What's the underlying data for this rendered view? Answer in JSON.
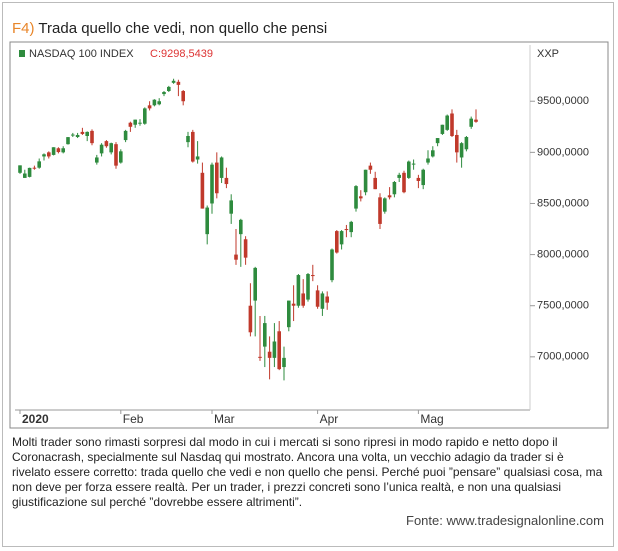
{
  "header": {
    "label": "F4)",
    "title": "Trada quello che vedi, non quello che pensi"
  },
  "chart_data": {
    "type": "candlestick",
    "series_name": "NASDAQ 100 INDEX",
    "last_label": "C:9298,5439",
    "axis_label": "XXP",
    "up_color": "#2e8b3e",
    "down_color": "#c0392b",
    "categories": [
      "2020",
      null,
      null,
      null,
      null,
      null,
      null,
      null,
      null,
      null,
      null,
      null,
      null,
      null,
      null,
      null,
      null,
      null,
      null,
      null,
      null,
      "Feb",
      null,
      null,
      null,
      null,
      null,
      null,
      null,
      null,
      null,
      null,
      null,
      null,
      null,
      null,
      null,
      null,
      null,
      null,
      "Mar",
      null,
      null,
      null,
      null,
      null,
      null,
      null,
      null,
      null,
      null,
      null,
      null,
      null,
      null,
      null,
      null,
      null,
      null,
      null,
      null,
      null,
      "Apr",
      null,
      null,
      null,
      null,
      null,
      null,
      null,
      null,
      null,
      null,
      null,
      null,
      null,
      null,
      null,
      null,
      null,
      null,
      null,
      null,
      "Mag",
      null,
      null,
      null,
      null,
      null,
      null,
      null,
      null,
      null,
      null,
      null,
      null
    ],
    "ohlc": [
      [
        8800,
        8873,
        8790,
        8873
      ],
      [
        8750,
        8830,
        8750,
        8793
      ],
      [
        8760,
        8850,
        8755,
        8848
      ],
      [
        8850,
        8870,
        8830,
        8846
      ],
      [
        8850,
        8940,
        8840,
        8912
      ],
      [
        8960,
        8990,
        8920,
        8981
      ],
      [
        9000,
        9010,
        8940,
        8960
      ],
      [
        8975,
        9050,
        8970,
        9050
      ],
      [
        9040,
        9050,
        8990,
        9003
      ],
      [
        9000,
        9060,
        8990,
        9040
      ],
      [
        9080,
        9150,
        9075,
        9149
      ],
      [
        9170,
        9190,
        9150,
        9174
      ],
      [
        9150,
        9190,
        9140,
        9170
      ],
      [
        9200,
        9240,
        9170,
        9180
      ],
      [
        9160,
        9205,
        9110,
        9200
      ],
      [
        9210,
        9225,
        9070,
        9090
      ],
      [
        8900,
        8975,
        8880,
        8950
      ],
      [
        8990,
        9090,
        8960,
        9075
      ],
      [
        9110,
        9120,
        9045,
        9060
      ],
      [
        9000,
        9095,
        8980,
        9090
      ],
      [
        9080,
        9100,
        8840,
        8870
      ],
      [
        8900,
        9030,
        8890,
        9010
      ],
      [
        9120,
        9220,
        9100,
        9210
      ],
      [
        9290,
        9300,
        9200,
        9250
      ],
      [
        9270,
        9320,
        9240,
        9320
      ],
      [
        9290,
        9325,
        9260,
        9290
      ],
      [
        9280,
        9440,
        9270,
        9430
      ],
      [
        9460,
        9500,
        9410,
        9430
      ],
      [
        9460,
        9520,
        9450,
        9515
      ],
      [
        9470,
        9530,
        9460,
        9500
      ],
      [
        9570,
        9600,
        9550,
        9590
      ],
      [
        9600,
        9650,
        9590,
        9640
      ],
      [
        9680,
        9720,
        9670,
        9700
      ],
      [
        9690,
        9710,
        9550,
        9660
      ],
      [
        9600,
        9610,
        9460,
        9500
      ],
      [
        9100,
        9200,
        9050,
        9160
      ],
      [
        9200,
        9220,
        8900,
        8910
      ],
      [
        8930,
        9110,
        8890,
        8960
      ],
      [
        8800,
        8900,
        8450,
        8450
      ],
      [
        8200,
        8480,
        8100,
        8460
      ],
      [
        8500,
        8900,
        8400,
        8880
      ],
      [
        8900,
        9000,
        8550,
        8600
      ],
      [
        8750,
        8960,
        8700,
        8950
      ],
      [
        8750,
        8850,
        8650,
        8690
      ],
      [
        8400,
        8590,
        8300,
        8530
      ],
      [
        8000,
        8250,
        7900,
        7950
      ],
      [
        8200,
        8350,
        7880,
        8340
      ],
      [
        8150,
        8180,
        7900,
        7970
      ],
      [
        7500,
        7720,
        7200,
        7240
      ],
      [
        7550,
        7880,
        7200,
        7870
      ],
      [
        7000,
        7400,
        6960,
        6990
      ],
      [
        7100,
        7400,
        6900,
        7330
      ],
      [
        7050,
        7200,
        6780,
        6990
      ],
      [
        6990,
        7330,
        6900,
        7150
      ],
      [
        7250,
        7350,
        6870,
        6880
      ],
      [
        6900,
        7100,
        6770,
        6990
      ],
      [
        7290,
        7550,
        7250,
        7550
      ],
      [
        7520,
        7700,
        7350,
        7500
      ],
      [
        7500,
        7810,
        7480,
        7800
      ],
      [
        7620,
        7760,
        7480,
        7500
      ],
      [
        7560,
        7820,
        7540,
        7810
      ],
      [
        7800,
        7900,
        7740,
        7790
      ],
      [
        7650,
        7700,
        7470,
        7490
      ],
      [
        7470,
        7640,
        7400,
        7620
      ],
      [
        7590,
        7640,
        7460,
        7530
      ],
      [
        7750,
        8060,
        7730,
        8050
      ],
      [
        8230,
        8240,
        8010,
        8020
      ],
      [
        8100,
        8240,
        8050,
        8230
      ],
      [
        8250,
        8290,
        8170,
        8240
      ],
      [
        8220,
        8330,
        8170,
        8320
      ],
      [
        8450,
        8680,
        8420,
        8670
      ],
      [
        8570,
        8630,
        8520,
        8550
      ],
      [
        8610,
        8830,
        8580,
        8830
      ],
      [
        8870,
        8900,
        8790,
        8830
      ],
      [
        8750,
        8810,
        8640,
        8640
      ],
      [
        8560,
        8600,
        8250,
        8300
      ],
      [
        8420,
        8560,
        8400,
        8550
      ],
      [
        8580,
        8660,
        8540,
        8560
      ],
      [
        8590,
        8720,
        8560,
        8710
      ],
      [
        8750,
        8800,
        8710,
        8780
      ],
      [
        8800,
        8820,
        8600,
        8610
      ],
      [
        8750,
        8920,
        8740,
        8910
      ],
      [
        8890,
        8930,
        8830,
        8890
      ],
      [
        8750,
        8780,
        8650,
        8720
      ],
      [
        8680,
        8840,
        8640,
        8830
      ],
      [
        8900,
        9020,
        8880,
        8940
      ],
      [
        8960,
        9060,
        8950,
        9020
      ],
      [
        9090,
        9140,
        9060,
        9140
      ],
      [
        9180,
        9270,
        9170,
        9270
      ],
      [
        9220,
        9370,
        9210,
        9360
      ],
      [
        9380,
        9420,
        9150,
        9160
      ],
      [
        9170,
        9220,
        8900,
        9000
      ],
      [
        8950,
        9100,
        8850,
        9090
      ],
      [
        9030,
        9160,
        9010,
        9150
      ],
      [
        9250,
        9350,
        9230,
        9330
      ],
      [
        9320,
        9420,
        9290,
        9298.5439
      ]
    ],
    "ylim": [
      6480,
      10050
    ],
    "yticks": [
      {
        "value": 7000,
        "label": "7000,0000"
      },
      {
        "value": 7500,
        "label": "7500,0000"
      },
      {
        "value": 8000,
        "label": "8000,0000"
      },
      {
        "value": 8500,
        "label": "8500,0000"
      },
      {
        "value": 9000,
        "label": "9000,0000"
      },
      {
        "value": 9500,
        "label": "9500,0000"
      }
    ]
  },
  "caption": "Molti trader sono rimasti sorpresi dal modo in cui i mercati si sono ripresi in modo rapido e netto dopo il Coronacrash, specialmente sul Nasdaq qui mostrato. Ancora una volta, un vecchio adagio da trader si è rivelato essere corretto: trada quello che vedi e non quello che pensi. Perché puoi ”pensare” qualsiasi cosa, ma non deve per forza essere realtà. Per un trader, i prezzi concreti sono l’unica realtà, e non una qualsiasi giustificazione sul perché ”dovrebbe essere altrimenti”.",
  "source": "Fonte: www.tradesignalonline.com"
}
